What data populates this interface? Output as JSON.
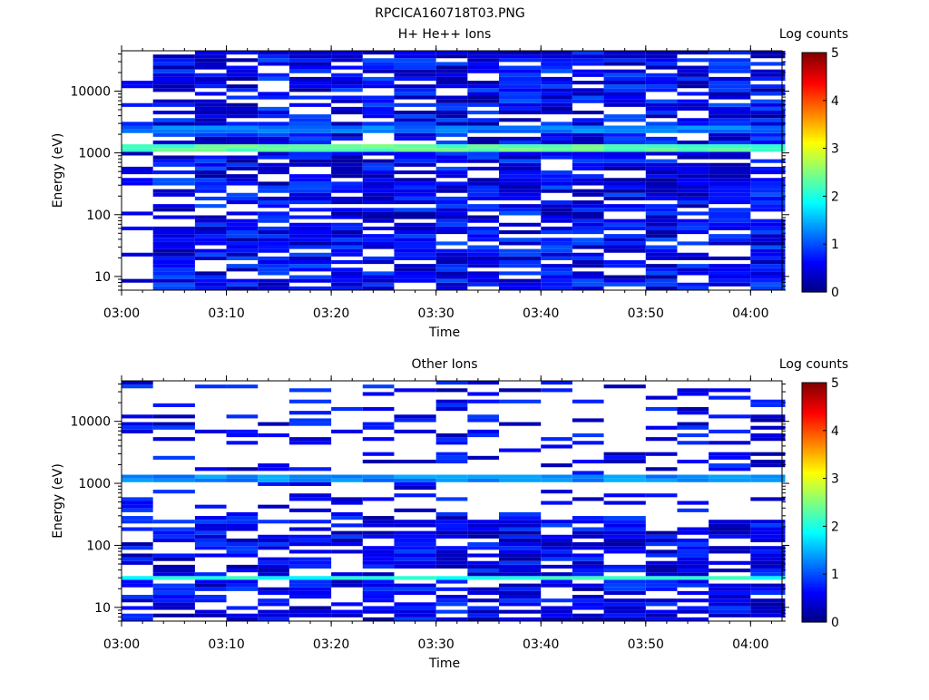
{
  "window": {
    "title": "RPCICA160718T03.PNG"
  },
  "colorbar": {
    "label": "Log counts",
    "range": [
      0,
      5
    ],
    "ticks": [
      "0",
      "1",
      "2",
      "3",
      "4",
      "5"
    ],
    "colormap": "jet"
  },
  "chart_data": [
    {
      "type": "heatmap",
      "title": "H+ He++ Ions",
      "xlabel": "Time",
      "ylabel": "Energy (eV)",
      "x_ticks": [
        "03:00",
        "03:10",
        "03:20",
        "03:30",
        "03:40",
        "03:50",
        "04:00"
      ],
      "xlim": [
        "03:00",
        "04:03"
      ],
      "y_ticks": [
        "10",
        "100",
        "1000",
        "10000"
      ],
      "ylim": [
        6,
        45000
      ],
      "yscale": "log",
      "time_bins": [
        "03:00",
        "03:03",
        "03:07",
        "03:10",
        "03:13",
        "03:16",
        "03:20",
        "03:23",
        "03:26",
        "03:30",
        "03:33",
        "03:36",
        "03:40",
        "03:43",
        "03:46",
        "03:50",
        "03:53",
        "03:56",
        "04:00"
      ],
      "notable_features": [
        {
          "energy_eV": 1200,
          "log_counts": 2.3
        },
        {
          "energy_eV": 2500,
          "log_counts": 1.2
        }
      ],
      "background_log_counts": [
        0,
        1
      ]
    },
    {
      "type": "heatmap",
      "title": "Other Ions",
      "xlabel": "Time",
      "ylabel": "Energy (eV)",
      "x_ticks": [
        "03:00",
        "03:10",
        "03:20",
        "03:30",
        "03:40",
        "03:50",
        "04:00"
      ],
      "xlim": [
        "03:00",
        "04:03"
      ],
      "y_ticks": [
        "10",
        "100",
        "1000",
        "10000"
      ],
      "ylim": [
        6,
        45000
      ],
      "yscale": "log",
      "time_bins": [
        "03:00",
        "03:03",
        "03:07",
        "03:10",
        "03:13",
        "03:16",
        "03:20",
        "03:23",
        "03:26",
        "03:30",
        "03:33",
        "03:36",
        "03:40",
        "03:43",
        "03:46",
        "03:50",
        "03:53",
        "03:56",
        "04:00"
      ],
      "notable_features": [
        {
          "energy_eV": 30,
          "log_counts": 2.0
        },
        {
          "energy_eV": 1200,
          "log_counts": 1.3
        }
      ],
      "background_log_counts": [
        0,
        1
      ]
    }
  ]
}
